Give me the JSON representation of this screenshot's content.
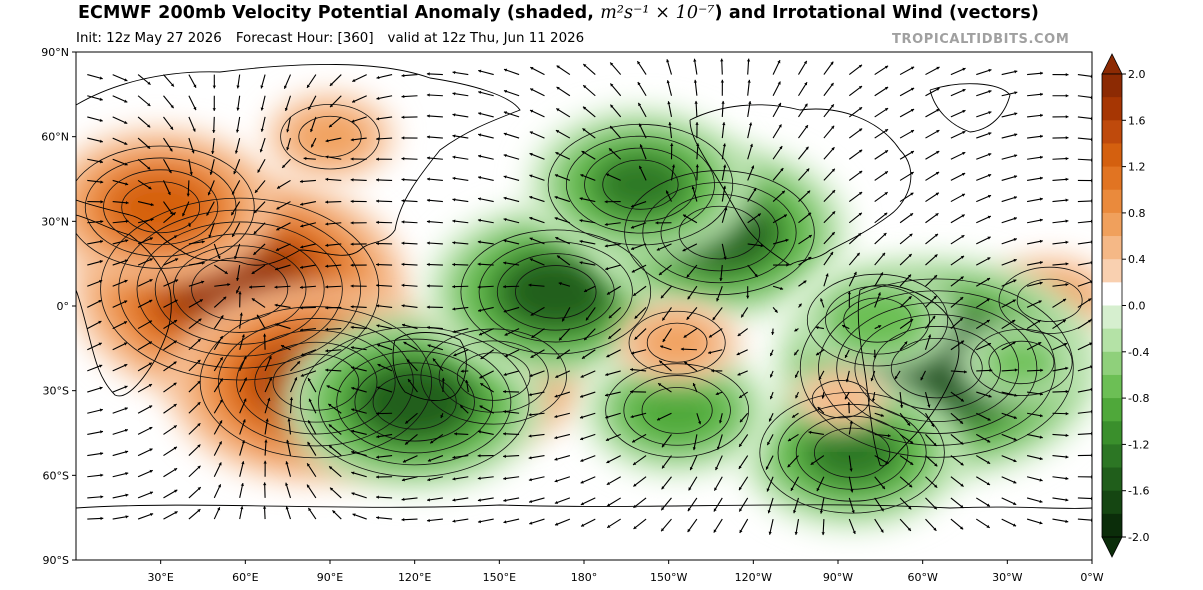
{
  "header": {
    "title_main": "ECMWF 200mb Velocity Potential Anomaly (shaded, ",
    "title_units": "m²s⁻¹ × 10⁻⁷",
    "title_tail": ") and Irrotational Wind (vectors)",
    "init": "Init: 12z May 27 2026",
    "forecast_hour": "Forecast Hour: [360]",
    "valid": "valid at 12z Thu, Jun 11 2026",
    "credit": "TROPICALTIDBITS.COM"
  },
  "map": {
    "lat_ticks": [
      "90°N",
      "60°N",
      "30°N",
      "0°",
      "30°S",
      "60°S",
      "90°S"
    ],
    "lon_ticks": [
      "30°E",
      "60°E",
      "90°E",
      "120°E",
      "150°E",
      "180°",
      "150°W",
      "120°W",
      "90°W",
      "60°W",
      "30°W",
      "0°W"
    ],
    "lon_range_deg_east": [
      0,
      360
    ],
    "lat_range": [
      -90,
      90
    ],
    "anomaly_centers": [
      {
        "lon": 58,
        "lat": 6,
        "value": 1.9
      },
      {
        "lon": 85,
        "lat": -27,
        "value": 1.5
      },
      {
        "lon": 30,
        "lat": 35,
        "value": 1.2
      },
      {
        "lon": 148,
        "lat": -25,
        "value": 1.0
      },
      {
        "lon": 345,
        "lat": 2,
        "value": 0.7
      },
      {
        "lon": 120,
        "lat": -34,
        "value": -1.4
      },
      {
        "lon": 170,
        "lat": 5,
        "value": -1.3
      },
      {
        "lon": 228,
        "lat": 26,
        "value": -1.3
      },
      {
        "lon": 200,
        "lat": 43,
        "value": -1.1
      },
      {
        "lon": 305,
        "lat": -22,
        "value": -1.7
      },
      {
        "lon": 275,
        "lat": -52,
        "value": -1.1
      },
      {
        "lon": 213,
        "lat": -37,
        "value": -0.9
      },
      {
        "lon": 284,
        "lat": -5,
        "value": -0.8
      },
      {
        "lon": 335,
        "lat": -20,
        "value": -0.7
      },
      {
        "lon": 213,
        "lat": -13,
        "value": 0.5
      },
      {
        "lon": 271,
        "lat": -33,
        "value": 0.4
      },
      {
        "lon": 90,
        "lat": 60,
        "value": 0.6
      }
    ]
  },
  "colorbar": {
    "ticks": [
      "2.0",
      "1.6",
      "1.2",
      "0.8",
      "0.4",
      "0.0",
      "-0.4",
      "-0.8",
      "-1.2",
      "-1.6",
      "-2.0"
    ],
    "levels": [
      2.0,
      1.8,
      1.6,
      1.4,
      1.2,
      1.0,
      0.8,
      0.6,
      0.4,
      0.2,
      -0.2,
      -0.4,
      -0.6,
      -0.8,
      -1.0,
      -1.2,
      -1.4,
      -1.6,
      -1.8,
      -2.0
    ],
    "colors": [
      "#8c2a03",
      "#a63603",
      "#bf4a0c",
      "#d4600f",
      "#e17422",
      "#ea8a3c",
      "#f0a05c",
      "#f5b886",
      "#f9d0b0",
      "#ffffff",
      "#d6efcf",
      "#b4e2a6",
      "#8fd07b",
      "#6cbf55",
      "#4fa83a",
      "#3a8f2c",
      "#2c7624",
      "#205e1b",
      "#154612",
      "#0b2d0a"
    ]
  }
}
